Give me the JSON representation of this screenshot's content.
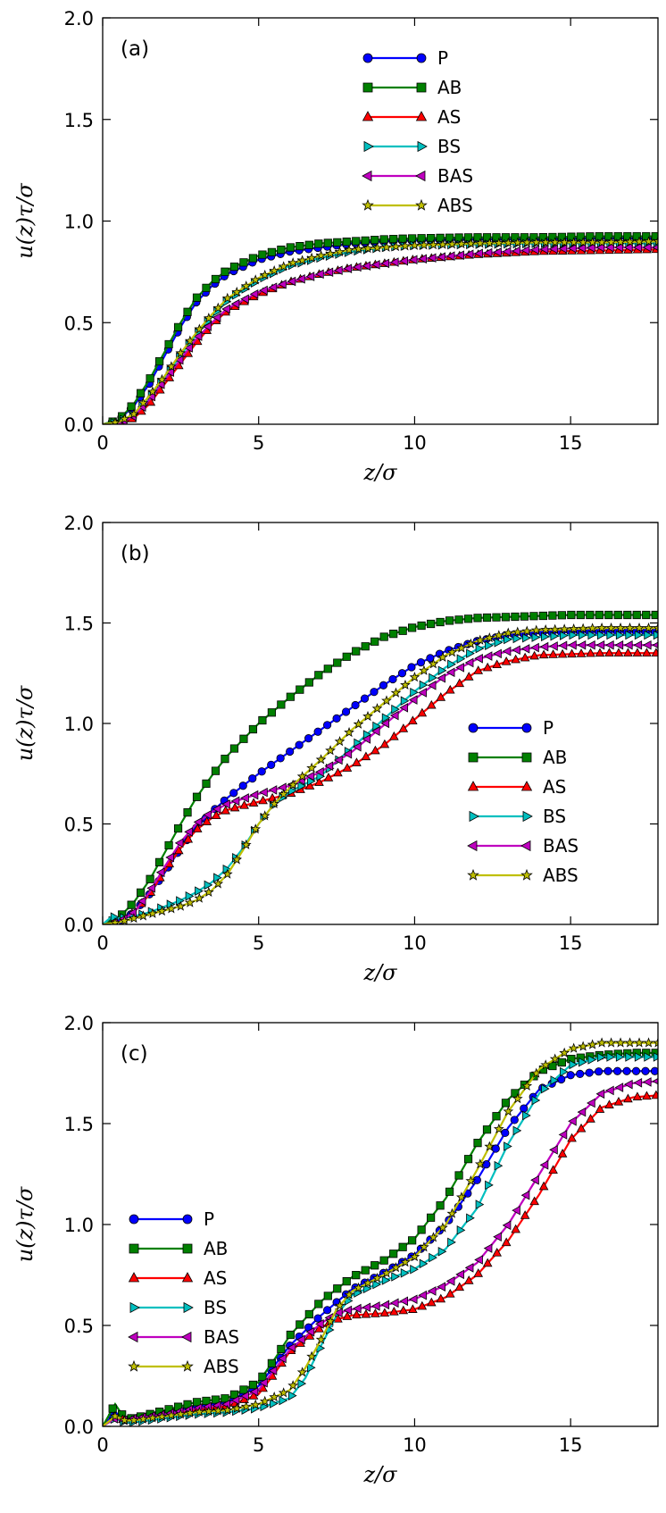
{
  "chart_data": [
    {
      "type": "line",
      "panel_label": "(a)",
      "xlabel": "z/σ",
      "ylabel": "u(z)τ/σ",
      "xlim": [
        0,
        17.8
      ],
      "ylim": [
        0,
        2.0
      ],
      "xticks": [
        "0",
        "5",
        "10",
        "15"
      ],
      "yticks": [
        "0.0",
        "0.5",
        "1.0",
        "1.5",
        "2.0"
      ],
      "grid": false,
      "legend_position": "top-center",
      "series": [
        {
          "name": "P",
          "color": "#0000ff",
          "marker": "circle",
          "x": [
            0,
            0.5,
            1,
            1.5,
            2,
            2.5,
            3,
            3.5,
            4,
            5,
            6,
            7,
            8,
            9,
            10,
            12,
            14,
            16,
            17.8
          ],
          "y": [
            0,
            0.02,
            0.09,
            0.2,
            0.34,
            0.48,
            0.6,
            0.68,
            0.74,
            0.81,
            0.85,
            0.87,
            0.89,
            0.9,
            0.905,
            0.91,
            0.91,
            0.915,
            0.915
          ]
        },
        {
          "name": "AB",
          "color": "#008000",
          "marker": "square",
          "x": [
            0,
            0.5,
            1,
            1.5,
            2,
            2.5,
            3,
            3.5,
            4,
            5,
            6,
            7,
            8,
            9,
            10,
            12,
            14,
            16,
            17.8
          ],
          "y": [
            0,
            0.02,
            0.1,
            0.22,
            0.36,
            0.5,
            0.62,
            0.7,
            0.76,
            0.83,
            0.87,
            0.89,
            0.9,
            0.91,
            0.915,
            0.92,
            0.92,
            0.925,
            0.925
          ]
        },
        {
          "name": "AS",
          "color": "#ff0000",
          "marker": "triangle-up",
          "x": [
            0,
            0.5,
            1,
            1.5,
            2,
            2.5,
            3,
            3.5,
            4,
            5,
            6,
            7,
            8,
            9,
            10,
            12,
            14,
            16,
            17.8
          ],
          "y": [
            0,
            0.0,
            0.03,
            0.1,
            0.2,
            0.3,
            0.4,
            0.49,
            0.56,
            0.64,
            0.7,
            0.74,
            0.77,
            0.79,
            0.81,
            0.835,
            0.85,
            0.855,
            0.86
          ]
        },
        {
          "name": "BS",
          "color": "#00bfbf",
          "marker": "triangle-right",
          "x": [
            0,
            0.5,
            1,
            1.5,
            2,
            2.5,
            3,
            3.5,
            4,
            5,
            6,
            7,
            8,
            9,
            10,
            12,
            14,
            16,
            17.8
          ],
          "y": [
            0,
            0.01,
            0.05,
            0.13,
            0.23,
            0.34,
            0.44,
            0.53,
            0.61,
            0.71,
            0.78,
            0.82,
            0.85,
            0.87,
            0.88,
            0.885,
            0.89,
            0.89,
            0.89
          ]
        },
        {
          "name": "BAS",
          "color": "#bf00bf",
          "marker": "triangle-left",
          "x": [
            0,
            0.5,
            1,
            1.5,
            2,
            2.5,
            3,
            3.5,
            4,
            5,
            6,
            7,
            8,
            9,
            10,
            12,
            14,
            16,
            17.8
          ],
          "y": [
            0,
            0.0,
            0.04,
            0.12,
            0.22,
            0.32,
            0.42,
            0.5,
            0.57,
            0.65,
            0.7,
            0.74,
            0.77,
            0.79,
            0.81,
            0.84,
            0.86,
            0.87,
            0.87
          ]
        },
        {
          "name": "ABS",
          "color": "#bfbf00",
          "marker": "star",
          "x": [
            0,
            0.5,
            1,
            1.5,
            2,
            2.5,
            3,
            3.5,
            4,
            5,
            6,
            7,
            8,
            9,
            10,
            12,
            14,
            16,
            17.8
          ],
          "y": [
            0,
            0.01,
            0.05,
            0.14,
            0.24,
            0.35,
            0.45,
            0.54,
            0.62,
            0.72,
            0.79,
            0.83,
            0.86,
            0.87,
            0.88,
            0.89,
            0.895,
            0.895,
            0.9
          ]
        }
      ]
    },
    {
      "type": "line",
      "panel_label": "(b)",
      "xlabel": "z/σ",
      "ylabel": "u(z)τ/σ",
      "xlim": [
        0,
        17.8
      ],
      "ylim": [
        0,
        2.0
      ],
      "xticks": [
        "0",
        "5",
        "10",
        "15"
      ],
      "yticks": [
        "0.0",
        "0.5",
        "1.0",
        "1.5",
        "2.0"
      ],
      "grid": false,
      "legend_position": "center-right",
      "series": [
        {
          "name": "P",
          "color": "#0000ff",
          "marker": "circle",
          "x": [
            0,
            0.5,
            1,
            1.5,
            2,
            2.5,
            3,
            3.5,
            4,
            5,
            6,
            7,
            8,
            9,
            10,
            11,
            12,
            13,
            14,
            15,
            16,
            17.8
          ],
          "y": [
            0,
            0.01,
            0.06,
            0.15,
            0.26,
            0.38,
            0.48,
            0.56,
            0.63,
            0.75,
            0.86,
            0.97,
            1.08,
            1.19,
            1.29,
            1.36,
            1.41,
            1.44,
            1.45,
            1.455,
            1.455,
            1.455
          ]
        },
        {
          "name": "AB",
          "color": "#008000",
          "marker": "square",
          "x": [
            0,
            0.5,
            1,
            1.5,
            2,
            2.5,
            3,
            3.5,
            4,
            5,
            6,
            7,
            8,
            9,
            10,
            11,
            12,
            13,
            14,
            15,
            16,
            17.8
          ],
          "y": [
            0,
            0.03,
            0.11,
            0.22,
            0.36,
            0.5,
            0.63,
            0.74,
            0.84,
            1.0,
            1.13,
            1.25,
            1.35,
            1.43,
            1.48,
            1.51,
            1.525,
            1.53,
            1.535,
            1.54,
            1.54,
            1.54
          ]
        },
        {
          "name": "AS",
          "color": "#ff0000",
          "marker": "triangle-up",
          "x": [
            0,
            0.5,
            1,
            1.5,
            2,
            2.5,
            3,
            3.5,
            4,
            5,
            6,
            7,
            8,
            9,
            10,
            11,
            12,
            13,
            14,
            15,
            16,
            17.8
          ],
          "y": [
            0,
            0.01,
            0.06,
            0.15,
            0.27,
            0.38,
            0.47,
            0.53,
            0.57,
            0.61,
            0.65,
            0.71,
            0.79,
            0.89,
            1.02,
            1.15,
            1.26,
            1.31,
            1.34,
            1.345,
            1.35,
            1.35
          ]
        },
        {
          "name": "BS",
          "color": "#00bfbf",
          "marker": "triangle-right",
          "x": [
            0,
            0.3,
            0.5,
            1,
            1.5,
            2,
            2.5,
            3,
            3.5,
            4,
            4.5,
            5,
            5.5,
            6,
            7,
            8,
            9,
            10,
            11,
            12,
            13,
            14,
            15,
            16,
            17.8
          ],
          "y": [
            0,
            0.04,
            0.03,
            0.04,
            0.06,
            0.09,
            0.12,
            0.16,
            0.21,
            0.28,
            0.38,
            0.5,
            0.6,
            0.66,
            0.74,
            0.88,
            1.02,
            1.16,
            1.28,
            1.37,
            1.42,
            1.43,
            1.44,
            1.44,
            1.44
          ]
        },
        {
          "name": "BAS",
          "color": "#bf00bf",
          "marker": "triangle-left",
          "x": [
            0,
            0.5,
            1,
            1.5,
            2,
            2.5,
            3,
            3.5,
            4,
            5,
            6,
            7,
            8,
            9,
            10,
            11,
            12,
            13,
            14,
            15,
            16,
            17.8
          ],
          "y": [
            0,
            0.01,
            0.06,
            0.16,
            0.29,
            0.41,
            0.5,
            0.56,
            0.6,
            0.65,
            0.69,
            0.76,
            0.86,
            0.99,
            1.12,
            1.24,
            1.32,
            1.36,
            1.38,
            1.39,
            1.39,
            1.39
          ]
        },
        {
          "name": "ABS",
          "color": "#bfbf00",
          "marker": "star",
          "x": [
            0,
            0.5,
            1,
            1.5,
            2,
            2.5,
            3,
            3.5,
            4,
            4.5,
            5,
            5.5,
            6,
            7,
            8,
            9,
            10,
            11,
            12,
            13,
            14,
            15,
            16,
            17.8
          ],
          "y": [
            0,
            0.01,
            0.03,
            0.05,
            0.07,
            0.09,
            0.12,
            0.17,
            0.25,
            0.37,
            0.5,
            0.6,
            0.68,
            0.82,
            0.97,
            1.1,
            1.23,
            1.34,
            1.41,
            1.45,
            1.465,
            1.47,
            1.475,
            1.475
          ]
        }
      ]
    },
    {
      "type": "line",
      "panel_label": "(c)",
      "xlabel": "z/σ",
      "ylabel": "u(z)τ/σ",
      "xlim": [
        0,
        17.8
      ],
      "ylim": [
        0,
        2.0
      ],
      "xticks": [
        "0",
        "5",
        "10",
        "15"
      ],
      "yticks": [
        "0.0",
        "0.5",
        "1.0",
        "1.5",
        "2.0"
      ],
      "grid": false,
      "legend_position": "center-left",
      "series": [
        {
          "name": "P",
          "color": "#0000ff",
          "marker": "circle",
          "x": [
            0,
            0.4,
            0.7,
            1,
            2,
            3,
            4,
            5,
            5.5,
            6,
            7,
            8,
            9,
            10,
            11,
            12,
            13,
            14,
            15,
            16,
            17,
            17.8
          ],
          "y": [
            0,
            0.07,
            0.04,
            0.04,
            0.06,
            0.09,
            0.12,
            0.2,
            0.3,
            0.4,
            0.55,
            0.68,
            0.76,
            0.85,
            1.0,
            1.22,
            1.48,
            1.67,
            1.74,
            1.76,
            1.76,
            1.76
          ]
        },
        {
          "name": "AB",
          "color": "#008000",
          "marker": "square",
          "x": [
            0,
            0.4,
            0.7,
            1,
            2,
            3,
            4,
            5,
            5.5,
            6,
            7,
            8,
            9,
            10,
            11,
            12,
            13,
            14,
            15,
            16,
            17,
            17.8
          ],
          "y": [
            0,
            0.11,
            0.04,
            0.04,
            0.08,
            0.12,
            0.14,
            0.22,
            0.33,
            0.45,
            0.62,
            0.74,
            0.82,
            0.93,
            1.13,
            1.4,
            1.62,
            1.76,
            1.82,
            1.84,
            1.85,
            1.85
          ]
        },
        {
          "name": "AS",
          "color": "#ff0000",
          "marker": "triangle-up",
          "x": [
            0,
            0.4,
            0.7,
            1,
            2,
            3,
            4,
            5,
            5.5,
            6,
            7,
            7.5,
            8,
            9,
            10,
            11,
            12,
            13,
            14,
            15,
            16,
            17,
            17.8
          ],
          "y": [
            0,
            0.05,
            0.03,
            0.03,
            0.05,
            0.08,
            0.1,
            0.16,
            0.26,
            0.37,
            0.49,
            0.53,
            0.55,
            0.56,
            0.58,
            0.64,
            0.75,
            0.92,
            1.15,
            1.42,
            1.58,
            1.63,
            1.64
          ]
        },
        {
          "name": "BS",
          "color": "#00bfbf",
          "marker": "triangle-right",
          "x": [
            0,
            0.4,
            0.7,
            1,
            2,
            3,
            4,
            5,
            6,
            6.5,
            7,
            7.5,
            8,
            9,
            10,
            11,
            12,
            13,
            14,
            15,
            16,
            17,
            17.8
          ],
          "y": [
            0,
            0.04,
            0.02,
            0.02,
            0.04,
            0.06,
            0.07,
            0.09,
            0.14,
            0.24,
            0.4,
            0.55,
            0.65,
            0.72,
            0.78,
            0.88,
            1.08,
            1.4,
            1.65,
            1.79,
            1.83,
            1.83,
            1.83
          ]
        },
        {
          "name": "BAS",
          "color": "#bf00bf",
          "marker": "triangle-left",
          "x": [
            0,
            0.4,
            0.7,
            1,
            2,
            3,
            4,
            5,
            5.5,
            6,
            7,
            7.5,
            8,
            9,
            10,
            11,
            12,
            13,
            14,
            15,
            16,
            17,
            17.8
          ],
          "y": [
            0,
            0.04,
            0.03,
            0.04,
            0.06,
            0.09,
            0.11,
            0.18,
            0.28,
            0.38,
            0.51,
            0.56,
            0.58,
            0.6,
            0.63,
            0.7,
            0.81,
            1.0,
            1.25,
            1.5,
            1.65,
            1.7,
            1.71
          ]
        },
        {
          "name": "ABS",
          "color": "#bfbf00",
          "marker": "star",
          "x": [
            0,
            0.4,
            0.7,
            1,
            2,
            3,
            4,
            5,
            6,
            6.5,
            7,
            7.5,
            8,
            9,
            10,
            11,
            12,
            13,
            14,
            15,
            16,
            17,
            17.8
          ],
          "y": [
            0,
            0.05,
            0.03,
            0.03,
            0.05,
            0.07,
            0.08,
            0.11,
            0.18,
            0.29,
            0.43,
            0.58,
            0.67,
            0.75,
            0.84,
            1.0,
            1.27,
            1.56,
            1.77,
            1.87,
            1.9,
            1.9,
            1.9
          ]
        }
      ]
    }
  ]
}
